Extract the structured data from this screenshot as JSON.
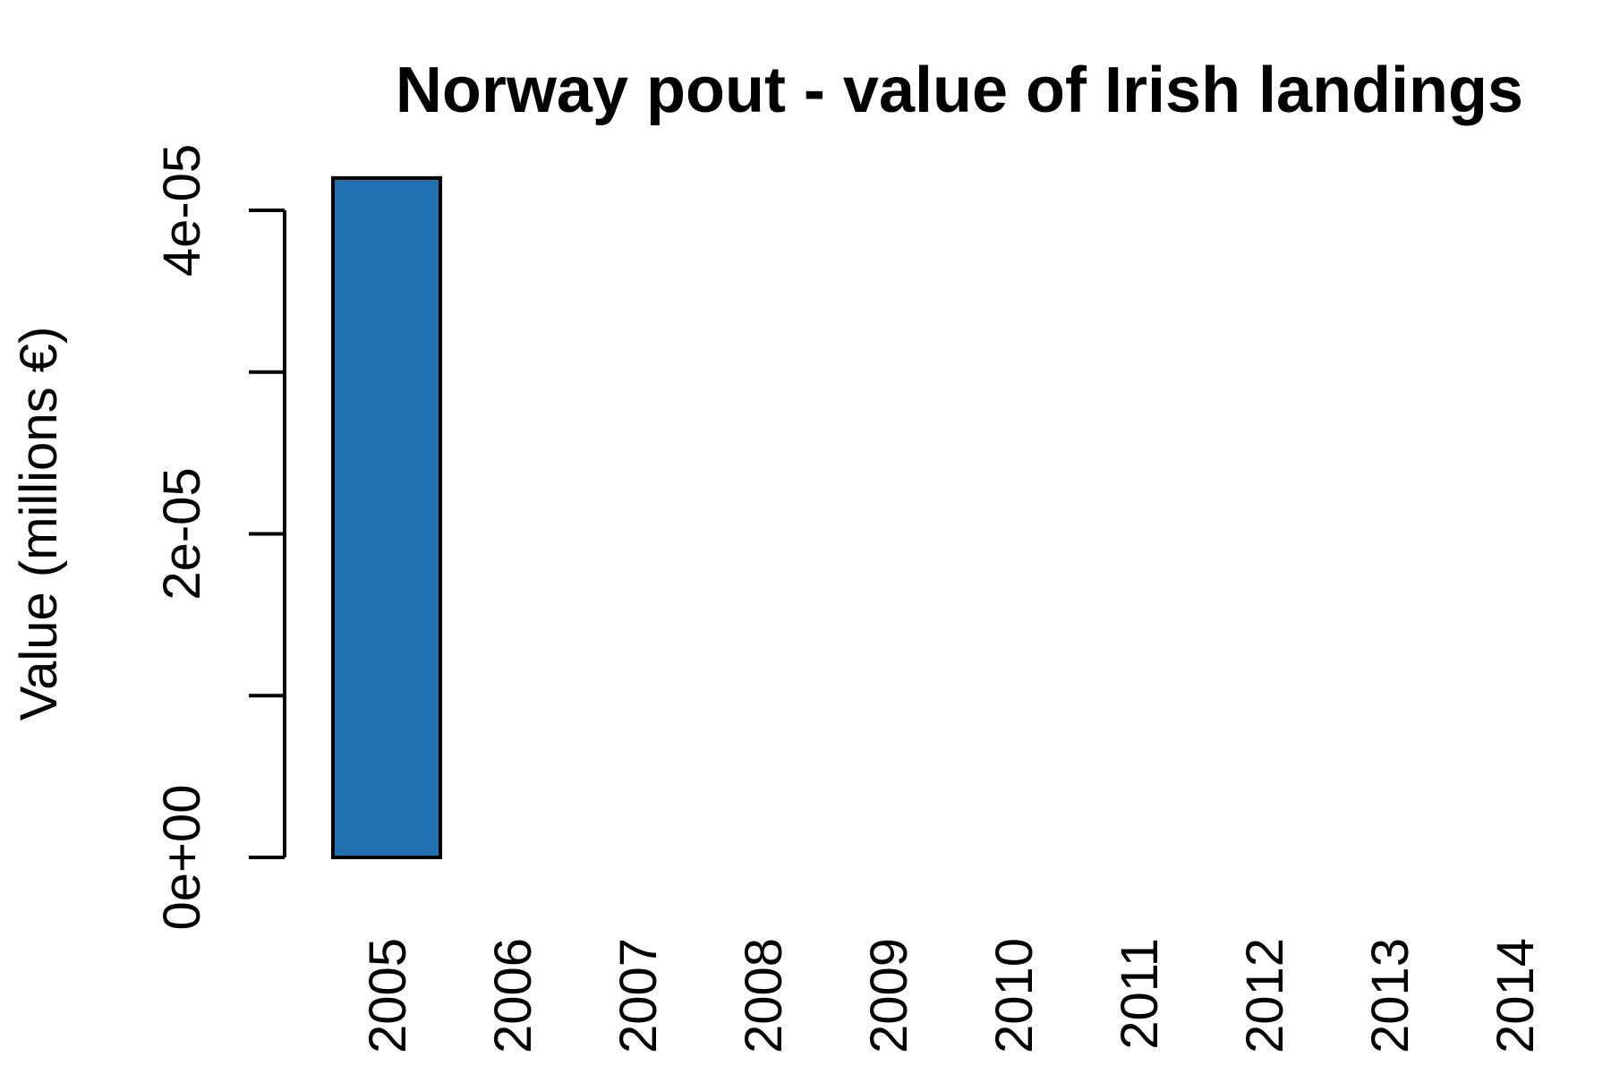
{
  "chart_data": {
    "type": "bar",
    "title": "Norway pout - value of Irish landings",
    "xlabel": "",
    "ylabel": "Value (millions €)",
    "categories": [
      "2005",
      "2006",
      "2007",
      "2008",
      "2009",
      "2010",
      "2011",
      "2012",
      "2013",
      "2014"
    ],
    "values": [
      4.2e-05,
      0,
      0,
      0,
      0,
      0,
      0,
      0,
      0,
      0
    ],
    "ylim": [
      0,
      4e-05
    ],
    "y_ticks": [
      0,
      1e-05,
      2e-05,
      3e-05,
      4e-05
    ],
    "y_tick_labels": [
      "0e+00",
      "",
      "2e-05",
      "",
      "4e-05"
    ],
    "grid": false,
    "legend": "none",
    "colors": {
      "bar_fill": "#2271b3",
      "bar_stroke": "#000000",
      "axis": "#000000",
      "text": "#000000",
      "background": "#ffffff"
    }
  }
}
